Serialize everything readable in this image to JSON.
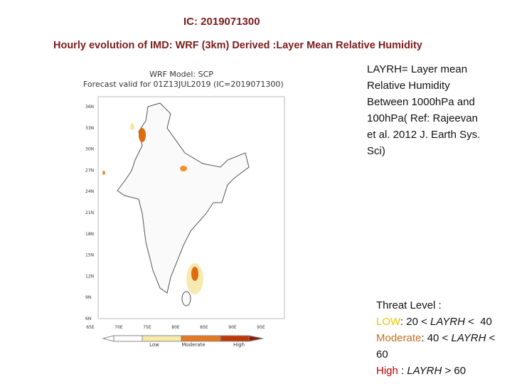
{
  "header": {
    "title": "IC: 2019071300",
    "subtitle": "Hourly evolution of IMD: WRF (3km) Derived :Layer Mean Relative Humidity"
  },
  "map": {
    "model": "WRF Model: SCP",
    "valid": "Forecast valid for 01Z13JUL2019 (IC=2019071300)",
    "lat_labels": [
      "36N",
      "33N",
      "30N",
      "27N",
      "24N",
      "21N",
      "18N",
      "15N",
      "12N",
      "9N",
      "6N"
    ],
    "lon_labels": [
      "65E",
      "70E",
      "75E",
      "80E",
      "85E",
      "90E",
      "95E"
    ],
    "legend": [
      "Low",
      "Moderate",
      "High"
    ]
  },
  "description": [
    "LAYRH= Layer mean",
    "Relative Humidity",
    "Between 1000hPa and",
    "100hPa( Ref: Rajeevan",
    "et al. 2012 J. Earth Sys.",
    "Sci)"
  ],
  "threat": {
    "heading": "Threat Level :",
    "lines": [
      {
        "label": "LOW",
        "pre": ": 20 < ",
        "var": "LAYRH",
        "post": " <  40"
      },
      {
        "label": "Moderate",
        "pre": ": 40 < ",
        "var": "LAYRH",
        "post": " <"
      },
      {
        "label": "60",
        "pre": "",
        "var": "",
        "post": ""
      },
      {
        "label": "High",
        "pre": " : ",
        "var": "LAYRH",
        "post": " > 60"
      }
    ]
  }
}
